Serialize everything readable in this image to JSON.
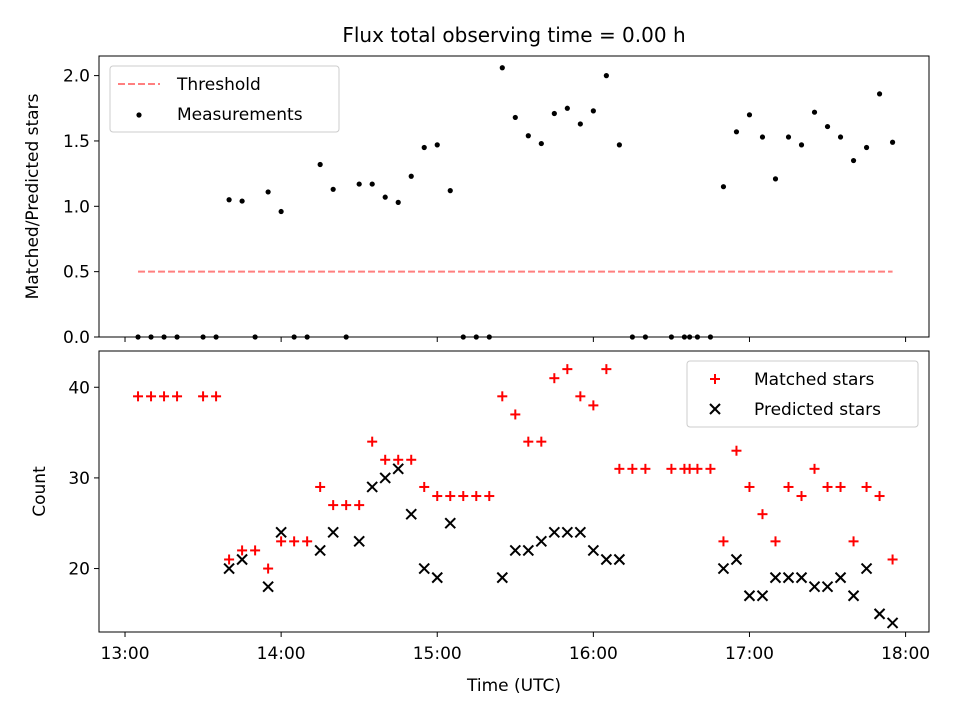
{
  "title": "Flux total observing time = 0.00 h",
  "chart_data": [
    {
      "type": "scatter",
      "ylabel": "Matched/Predicted stars",
      "xlim": [
        "12:50",
        "18:09"
      ],
      "ylim": [
        0,
        2.15
      ],
      "yticks": [
        "0.0",
        "0.5",
        "1.0",
        "1.5",
        "2.0"
      ],
      "legend_position": "upper-left",
      "threshold": {
        "name": "Threshold",
        "value": 0.5,
        "x_start": "13:05",
        "x_end": "17:55",
        "color": "#ff7f7f",
        "style": "dashed"
      },
      "series": [
        {
          "name": "Measurements",
          "color": "#000000",
          "marker": "dot",
          "points": [
            [
              "13:05",
              0
            ],
            [
              "13:10",
              0
            ],
            [
              "13:15",
              0
            ],
            [
              "13:20",
              0
            ],
            [
              "13:30",
              0
            ],
            [
              "13:35",
              0
            ],
            [
              "13:40",
              1.05
            ],
            [
              "13:45",
              1.04
            ],
            [
              "13:50",
              0
            ],
            [
              "13:55",
              1.11
            ],
            [
              "14:00",
              0.96
            ],
            [
              "14:05",
              0
            ],
            [
              "14:10",
              0
            ],
            [
              "14:15",
              1.32
            ],
            [
              "14:20",
              1.13
            ],
            [
              "14:25",
              0
            ],
            [
              "14:30",
              1.17
            ],
            [
              "14:35",
              1.17
            ],
            [
              "14:40",
              1.07
            ],
            [
              "14:45",
              1.03
            ],
            [
              "14:50",
              1.23
            ],
            [
              "14:55",
              1.45
            ],
            [
              "15:00",
              1.47
            ],
            [
              "15:05",
              1.12
            ],
            [
              "15:10",
              0
            ],
            [
              "15:15",
              0
            ],
            [
              "15:20",
              0
            ],
            [
              "15:25",
              2.06
            ],
            [
              "15:30",
              1.68
            ],
            [
              "15:35",
              1.54
            ],
            [
              "15:40",
              1.48
            ],
            [
              "15:45",
              1.71
            ],
            [
              "15:50",
              1.75
            ],
            [
              "15:55",
              1.63
            ],
            [
              "16:00",
              1.73
            ],
            [
              "16:05",
              2.0
            ],
            [
              "16:10",
              1.47
            ],
            [
              "16:15",
              0
            ],
            [
              "16:20",
              0
            ],
            [
              "16:30",
              0
            ],
            [
              "16:35",
              0
            ],
            [
              "16:37",
              0
            ],
            [
              "16:40",
              0
            ],
            [
              "16:45",
              0
            ],
            [
              "16:50",
              1.15
            ],
            [
              "16:55",
              1.57
            ],
            [
              "17:00",
              1.7
            ],
            [
              "17:05",
              1.53
            ],
            [
              "17:10",
              1.21
            ],
            [
              "17:15",
              1.53
            ],
            [
              "17:20",
              1.47
            ],
            [
              "17:25",
              1.72
            ],
            [
              "17:30",
              1.61
            ],
            [
              "17:35",
              1.53
            ],
            [
              "17:40",
              1.35
            ],
            [
              "17:45",
              1.45
            ],
            [
              "17:50",
              1.86
            ],
            [
              "17:55",
              1.49
            ]
          ]
        }
      ]
    },
    {
      "type": "scatter",
      "xlabel": "Time (UTC)",
      "ylabel": "Count",
      "xlim": [
        "12:50",
        "18:09"
      ],
      "ylim": [
        13,
        44
      ],
      "xticks": [
        "13:00",
        "14:00",
        "15:00",
        "16:00",
        "17:00",
        "18:00"
      ],
      "yticks": [
        "20",
        "30",
        "40"
      ],
      "legend_position": "upper-right",
      "series": [
        {
          "name": "Matched stars",
          "color": "#ff0000",
          "marker": "plus",
          "points": [
            [
              "13:05",
              39
            ],
            [
              "13:10",
              39
            ],
            [
              "13:15",
              39
            ],
            [
              "13:20",
              39
            ],
            [
              "13:30",
              39
            ],
            [
              "13:35",
              39
            ],
            [
              "13:40",
              21
            ],
            [
              "13:45",
              22
            ],
            [
              "13:50",
              22
            ],
            [
              "13:55",
              20
            ],
            [
              "14:00",
              23
            ],
            [
              "14:05",
              23
            ],
            [
              "14:10",
              23
            ],
            [
              "14:15",
              29
            ],
            [
              "14:20",
              27
            ],
            [
              "14:25",
              27
            ],
            [
              "14:30",
              27
            ],
            [
              "14:35",
              34
            ],
            [
              "14:40",
              32
            ],
            [
              "14:45",
              32
            ],
            [
              "14:50",
              32
            ],
            [
              "14:55",
              29
            ],
            [
              "15:00",
              28
            ],
            [
              "15:05",
              28
            ],
            [
              "15:10",
              28
            ],
            [
              "15:15",
              28
            ],
            [
              "15:20",
              28
            ],
            [
              "15:25",
              39
            ],
            [
              "15:30",
              37
            ],
            [
              "15:35",
              34
            ],
            [
              "15:40",
              34
            ],
            [
              "15:45",
              41
            ],
            [
              "15:50",
              42
            ],
            [
              "15:55",
              39
            ],
            [
              "16:00",
              38
            ],
            [
              "16:05",
              42
            ],
            [
              "16:10",
              31
            ],
            [
              "16:15",
              31
            ],
            [
              "16:20",
              31
            ],
            [
              "16:30",
              31
            ],
            [
              "16:35",
              31
            ],
            [
              "16:37",
              31
            ],
            [
              "16:40",
              31
            ],
            [
              "16:45",
              31
            ],
            [
              "16:50",
              23
            ],
            [
              "16:55",
              33
            ],
            [
              "17:00",
              29
            ],
            [
              "17:05",
              26
            ],
            [
              "17:10",
              23
            ],
            [
              "17:15",
              29
            ],
            [
              "17:20",
              28
            ],
            [
              "17:25",
              31
            ],
            [
              "17:30",
              29
            ],
            [
              "17:35",
              29
            ],
            [
              "17:40",
              23
            ],
            [
              "17:45",
              29
            ],
            [
              "17:50",
              28
            ],
            [
              "17:55",
              21
            ]
          ]
        },
        {
          "name": "Predicted stars",
          "color": "#000000",
          "marker": "x",
          "points": [
            [
              "13:40",
              20
            ],
            [
              "13:45",
              21
            ],
            [
              "13:55",
              18
            ],
            [
              "14:00",
              24
            ],
            [
              "14:15",
              22
            ],
            [
              "14:20",
              24
            ],
            [
              "14:30",
              23
            ],
            [
              "14:35",
              29
            ],
            [
              "14:40",
              30
            ],
            [
              "14:45",
              31
            ],
            [
              "14:50",
              26
            ],
            [
              "14:55",
              20
            ],
            [
              "15:00",
              19
            ],
            [
              "15:05",
              25
            ],
            [
              "15:25",
              19
            ],
            [
              "15:30",
              22
            ],
            [
              "15:35",
              22
            ],
            [
              "15:40",
              23
            ],
            [
              "15:45",
              24
            ],
            [
              "15:50",
              24
            ],
            [
              "15:55",
              24
            ],
            [
              "16:00",
              22
            ],
            [
              "16:05",
              21
            ],
            [
              "16:10",
              21
            ],
            [
              "16:50",
              20
            ],
            [
              "16:55",
              21
            ],
            [
              "17:00",
              17
            ],
            [
              "17:05",
              17
            ],
            [
              "17:10",
              19
            ],
            [
              "17:15",
              19
            ],
            [
              "17:20",
              19
            ],
            [
              "17:25",
              18
            ],
            [
              "17:30",
              18
            ],
            [
              "17:35",
              19
            ],
            [
              "17:40",
              17
            ],
            [
              "17:45",
              20
            ],
            [
              "17:50",
              15
            ],
            [
              "17:55",
              14
            ]
          ]
        }
      ]
    }
  ]
}
